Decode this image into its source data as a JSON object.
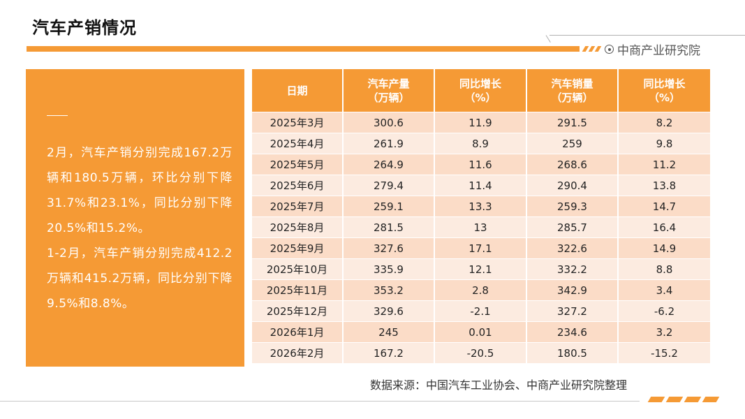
{
  "page": {
    "title": "汽车产销情况",
    "brand": "中商产业研究院",
    "source": "数据来源：中国汽车工业协会、中商产业研究院整理"
  },
  "summary": {
    "paragraphs": [
      "2月，汽车产销分别完成167.2万辆和180.5万辆，环比分别下降31.7%和23.1%，同比分别下降20.5%和15.2%。",
      "1-2月，汽车产销分别完成412.2万辆和415.2万辆，同比分别下降9.5%和8.8%。"
    ]
  },
  "table": {
    "headers": [
      {
        "line1": "日期",
        "line2": ""
      },
      {
        "line1": "汽车产量",
        "line2": "（万辆）"
      },
      {
        "line1": "同比增长",
        "line2": "（%）"
      },
      {
        "line1": "汽车销量",
        "line2": "（万辆）"
      },
      {
        "line1": "同比增长",
        "line2": "（%）"
      }
    ],
    "rows": [
      [
        "2025年3月",
        "300.6",
        "11.9",
        "291.5",
        "8.2"
      ],
      [
        "2025年4月",
        "261.9",
        "8.9",
        "259",
        "9.8"
      ],
      [
        "2025年5月",
        "264.9",
        "11.6",
        "268.6",
        "11.2"
      ],
      [
        "2025年6月",
        "279.4",
        "11.4",
        "290.4",
        "13.8"
      ],
      [
        "2025年7月",
        "259.1",
        "13.3",
        "259.3",
        "14.7"
      ],
      [
        "2025年8月",
        "281.5",
        "13",
        "285.7",
        "16.4"
      ],
      [
        "2025年9月",
        "327.6",
        "17.1",
        "322.6",
        "14.9"
      ],
      [
        "2025年10月",
        "335.9",
        "12.1",
        "332.2",
        "8.8"
      ],
      [
        "2025年11月",
        "353.2",
        "2.8",
        "342.9",
        "3.4"
      ],
      [
        "2025年12月",
        "329.6",
        "-2.1",
        "327.2",
        "-6.2"
      ],
      [
        "2026年1月",
        "245",
        "0.01",
        "234.6",
        "3.2"
      ],
      [
        "2026年2月",
        "167.2",
        "-20.5",
        "180.5",
        "-15.2"
      ]
    ]
  },
  "colors": {
    "accent": "#f59a35",
    "row_odd": "#fbdcc7",
    "row_even": "#fcebe0"
  }
}
